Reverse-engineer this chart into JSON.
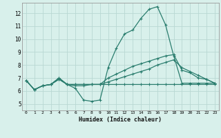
{
  "title": "",
  "xlabel": "Humidex (Indice chaleur)",
  "ylabel": "",
  "bg_color": "#d8f0eb",
  "grid_color": "#b8d8d3",
  "line_color": "#2a7d6e",
  "xlim": [
    -0.5,
    23.5
  ],
  "ylim": [
    4.5,
    12.8
  ],
  "xticks": [
    0,
    1,
    2,
    3,
    4,
    5,
    6,
    7,
    8,
    9,
    10,
    11,
    12,
    13,
    14,
    15,
    16,
    17,
    18,
    19,
    20,
    21,
    22,
    23
  ],
  "yticks": [
    5,
    6,
    7,
    8,
    9,
    10,
    11,
    12
  ],
  "line1_x": [
    0,
    1,
    2,
    3,
    4,
    5,
    6,
    7,
    8,
    9,
    10,
    11,
    12,
    13,
    14,
    15,
    16,
    17,
    18,
    19,
    20,
    21,
    22,
    23
  ],
  "line1_y": [
    6.8,
    6.1,
    6.4,
    6.5,
    6.9,
    6.5,
    6.2,
    5.3,
    5.2,
    5.3,
    7.8,
    9.3,
    10.4,
    10.7,
    11.6,
    12.3,
    12.5,
    11.1,
    8.7,
    6.6,
    6.6,
    6.6,
    6.6,
    6.6
  ],
  "line2_x": [
    0,
    1,
    2,
    3,
    4,
    5,
    6,
    7,
    8,
    9,
    10,
    11,
    12,
    13,
    14,
    15,
    16,
    17,
    18,
    19,
    20,
    21,
    22,
    23
  ],
  "line2_y": [
    6.8,
    6.1,
    6.4,
    6.5,
    7.0,
    6.5,
    6.4,
    6.4,
    6.5,
    6.5,
    7.0,
    7.3,
    7.6,
    7.9,
    8.1,
    8.3,
    8.5,
    8.7,
    8.8,
    7.6,
    7.4,
    7.0,
    6.9,
    6.6
  ],
  "line3_x": [
    0,
    1,
    2,
    3,
    4,
    5,
    6,
    7,
    8,
    9,
    10,
    11,
    12,
    13,
    14,
    15,
    16,
    17,
    18,
    19,
    20,
    21,
    22,
    23
  ],
  "line3_y": [
    6.8,
    6.1,
    6.4,
    6.5,
    6.9,
    6.5,
    6.5,
    6.5,
    6.5,
    6.5,
    6.5,
    6.5,
    6.5,
    6.5,
    6.5,
    6.5,
    6.5,
    6.5,
    6.5,
    6.5,
    6.5,
    6.5,
    6.5,
    6.5
  ],
  "line4_x": [
    0,
    1,
    2,
    3,
    4,
    5,
    6,
    7,
    8,
    9,
    10,
    11,
    12,
    13,
    14,
    15,
    16,
    17,
    18,
    19,
    20,
    21,
    22,
    23
  ],
  "line4_y": [
    6.8,
    6.1,
    6.4,
    6.5,
    7.0,
    6.5,
    6.5,
    6.5,
    6.5,
    6.5,
    6.7,
    6.9,
    7.1,
    7.3,
    7.5,
    7.7,
    8.0,
    8.2,
    8.4,
    7.8,
    7.5,
    7.2,
    6.9,
    6.6
  ]
}
